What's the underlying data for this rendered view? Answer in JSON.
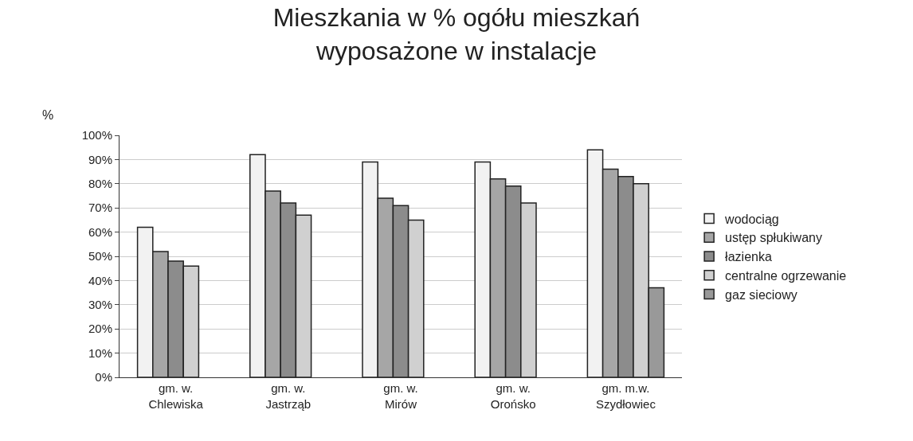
{
  "chart_data": {
    "type": "bar",
    "title": "Mieszkania w % ogółu mieszkań\nwyposażone w instalacje",
    "ylabel": "%",
    "categories": [
      "gm. w.\nChlewiska",
      "gm. w.\nJastrząb",
      "gm. w.\nMirów",
      "gm. w.\nOrońsko",
      "gm. m.w.\nSzydłowiec"
    ],
    "series": [
      {
        "name": "wodociąg",
        "color": "#f2f2f2",
        "values": [
          62,
          92,
          89,
          89,
          94
        ]
      },
      {
        "name": "ustęp spłukiwany",
        "color": "#a6a6a6",
        "values": [
          52,
          77,
          74,
          82,
          86
        ]
      },
      {
        "name": "łazienka",
        "color": "#8c8c8c",
        "values": [
          48,
          72,
          71,
          79,
          83
        ]
      },
      {
        "name": "centralne ogrzewanie",
        "color": "#d0d0d0",
        "values": [
          46,
          67,
          65,
          72,
          80
        ]
      },
      {
        "name": "gaz sieciowy",
        "color": "#999999",
        "values": [
          null,
          null,
          null,
          null,
          37
        ]
      }
    ],
    "ylim": [
      0,
      100
    ],
    "yticks": [
      {
        "value": 0,
        "label": "0%"
      },
      {
        "value": 10,
        "label": "10%"
      },
      {
        "value": 20,
        "label": "20%"
      },
      {
        "value": 30,
        "label": "30%"
      },
      {
        "value": 40,
        "label": "40%"
      },
      {
        "value": 50,
        "label": "50%"
      },
      {
        "value": 60,
        "label": "60%"
      },
      {
        "value": 70,
        "label": "70%"
      },
      {
        "value": 80,
        "label": "80%"
      },
      {
        "value": 90,
        "label": "90%"
      },
      {
        "value": 100,
        "label": "100%"
      }
    ],
    "grid": "y",
    "legend": "right"
  }
}
